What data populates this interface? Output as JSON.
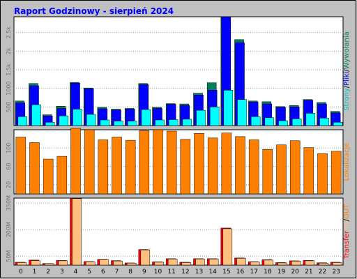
{
  "title": "Raport Godzinowy -   sierpień 2024",
  "colors": {
    "background": "#c0c0c0",
    "panel": "#ffffff",
    "frame": "#000000",
    "hits": "#00805c",
    "files": "#0000ff",
    "pages": "#00ffff",
    "sites": "#ff8000",
    "kbytes": "#ff0000",
    "kbin": "#ff8000",
    "kbout": "#ffc080",
    "grid": "#a0a0a0",
    "title": "#0000ff"
  },
  "chart_data": [
    {
      "name": "hits-files-pages",
      "type": "bar",
      "categories": [
        "0",
        "1",
        "2",
        "3",
        "4",
        "5",
        "6",
        "7",
        "8",
        "9",
        "10",
        "11",
        "12",
        "13",
        "14",
        "15",
        "16",
        "17",
        "18",
        "19",
        "20",
        "21",
        "22",
        "23"
      ],
      "ylim": [
        0,
        2925
      ],
      "yticks": [
        "500",
        "1000",
        "1.5k",
        "2k",
        "2.5k"
      ],
      "ytick_values": [
        500,
        1000,
        1500,
        2000,
        2500
      ],
      "ylabel_parts": [
        {
          "text": "Strony",
          "color": "#00c0c0"
        },
        {
          "text": "/",
          "color": "#000000"
        },
        {
          "text": "Pliki",
          "color": "#0000ff"
        },
        {
          "text": "/",
          "color": "#000000"
        },
        {
          "text": "Wywołania",
          "color": "#00805c"
        }
      ],
      "series": [
        {
          "name": "Wywołania",
          "values": [
            660,
            1130,
            290,
            520,
            1160,
            1010,
            490,
            440,
            460,
            1130,
            490,
            590,
            580,
            870,
            1150,
            2925,
            2310,
            660,
            640,
            510,
            540,
            700,
            620,
            380
          ]
        },
        {
          "name": "Pliki",
          "values": [
            610,
            1070,
            260,
            460,
            1140,
            990,
            450,
            420,
            440,
            1100,
            460,
            570,
            540,
            820,
            950,
            2920,
            2230,
            630,
            580,
            490,
            500,
            680,
            580,
            340
          ]
        },
        {
          "name": "Strony",
          "values": [
            240,
            560,
            90,
            260,
            440,
            300,
            150,
            120,
            120,
            430,
            150,
            160,
            170,
            410,
            500,
            950,
            700,
            240,
            210,
            130,
            180,
            330,
            200,
            90
          ]
        }
      ]
    },
    {
      "name": "sites",
      "type": "bar",
      "categories": [
        "0",
        "1",
        "2",
        "3",
        "4",
        "5",
        "6",
        "7",
        "8",
        "9",
        "10",
        "11",
        "12",
        "13",
        "14",
        "15",
        "16",
        "17",
        "18",
        "19",
        "20",
        "21",
        "22",
        "23"
      ],
      "ylim": [
        0,
        140
      ],
      "yticks": [
        "20",
        "60",
        "100"
      ],
      "ytick_values": [
        20,
        60,
        100
      ],
      "ylabel_parts": [
        {
          "text": "Lokalizacje",
          "color": "#ff8000"
        }
      ],
      "series": [
        {
          "name": "Lokalizacje",
          "values": [
            124,
            112,
            76,
            82,
            143,
            140,
            118,
            124,
            117,
            138,
            140,
            137,
            119,
            132,
            122,
            133,
            125,
            118,
            97,
            107,
            116,
            101,
            88,
            93
          ]
        }
      ]
    },
    {
      "name": "kbytes",
      "type": "bar",
      "categories": [
        "0",
        "1",
        "2",
        "3",
        "4",
        "5",
        "6",
        "7",
        "8",
        "9",
        "10",
        "11",
        "12",
        "13",
        "14",
        "15",
        "16",
        "17",
        "18",
        "19",
        "20",
        "21",
        "22",
        "23"
      ],
      "ylim": [
        0,
        378
      ],
      "yticks": [
        "50M",
        "200M",
        "350M"
      ],
      "ytick_values": [
        50,
        200,
        350
      ],
      "ylabel_parts": [
        {
          "text": "Transfer",
          "color": "#ff0000"
        },
        {
          "text": " ",
          "color": "#000000"
        },
        {
          "text": "IN",
          "color": "#ffc080"
        },
        {
          "text": "/",
          "color": "#000000"
        },
        {
          "text": "OUT",
          "color": "#ff8000"
        }
      ],
      "series": [
        {
          "name": "Transfer",
          "values": [
            16,
            28,
            9,
            26,
            378,
            20,
            32,
            25,
            12,
            88,
            18,
            36,
            16,
            36,
            36,
            209,
            40,
            19,
            30,
            14,
            24,
            26,
            13,
            16
          ]
        },
        {
          "name": "IN",
          "values": [
            14,
            25,
            8,
            24,
            375,
            18,
            30,
            23,
            11,
            85,
            16,
            34,
            14,
            34,
            34,
            205,
            38,
            17,
            28,
            12,
            22,
            24,
            11,
            14
          ]
        }
      ]
    }
  ]
}
